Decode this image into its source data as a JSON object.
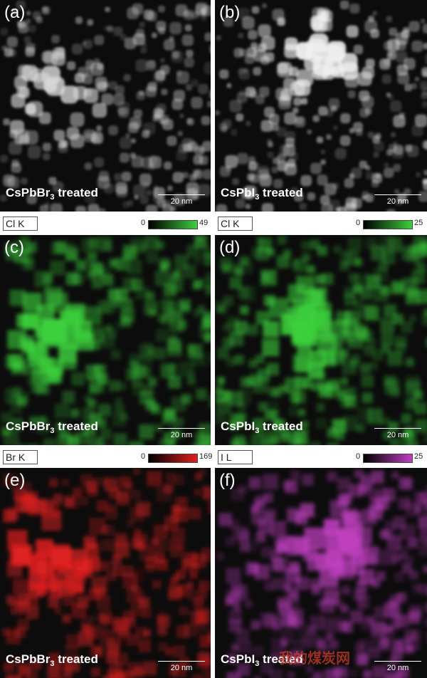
{
  "panels": [
    {
      "label": "(a)",
      "caption": {
        "formula": "CsPbBr",
        "subscript": "3",
        "suffix": " treated"
      },
      "scale_bar": "20 nm",
      "color": "#d8d8d8"
    },
    {
      "label": "(b)",
      "caption": {
        "formula": "CsPbI",
        "subscript": "3",
        "suffix": " treated"
      },
      "scale_bar": "20 nm",
      "color": "#f0f0f0"
    },
    {
      "label": "(c)",
      "caption": {
        "formula": "CsPbBr",
        "subscript": "3",
        "suffix": " treated"
      },
      "scale_bar": "20 nm",
      "color": "#3cd03c",
      "map": {
        "element": "Cl K",
        "min": "0",
        "max": "49"
      }
    },
    {
      "label": "(d)",
      "caption": {
        "formula": "CsPbI",
        "subscript": "3",
        "suffix": " treated"
      },
      "scale_bar": "20 nm",
      "color": "#3cd03c",
      "map": {
        "element": "Cl K",
        "min": "0",
        "max": "25"
      }
    },
    {
      "label": "(e)",
      "caption": {
        "formula": "CsPbBr",
        "subscript": "3",
        "suffix": " treated"
      },
      "scale_bar": "20 nm",
      "color": "#e02020",
      "map": {
        "element": "Br K",
        "min": "0",
        "max": "169"
      }
    },
    {
      "label": "(f)",
      "caption": {
        "formula": "CsPbI",
        "subscript": "3",
        "suffix": " treated"
      },
      "scale_bar": "20 nm",
      "color": "#c040c0",
      "map": {
        "element": "I L",
        "min": "0",
        "max": "25"
      }
    }
  ],
  "watermark": "我的煤炭网"
}
